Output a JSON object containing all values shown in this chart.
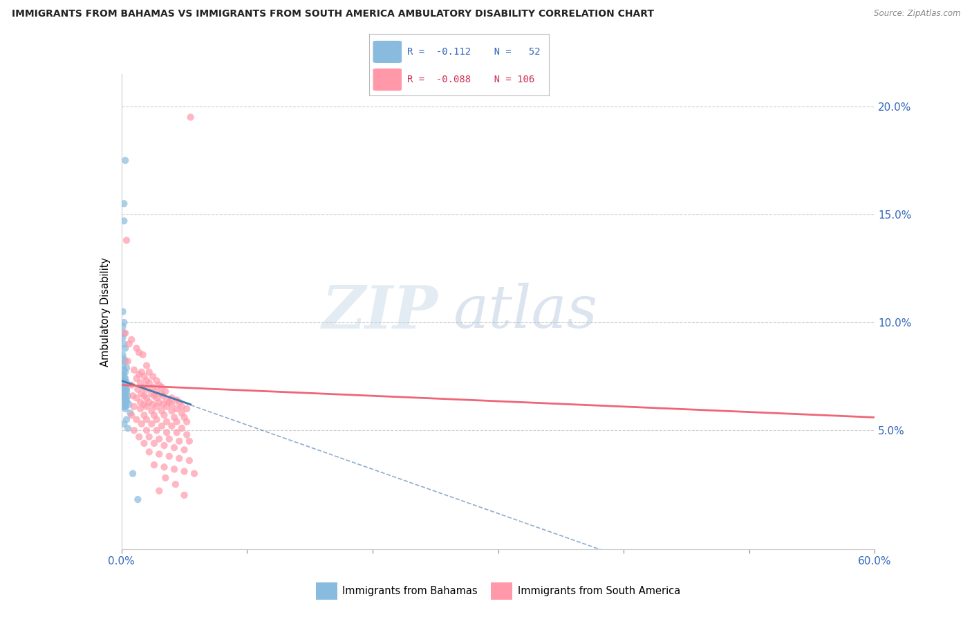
{
  "title": "IMMIGRANTS FROM BAHAMAS VS IMMIGRANTS FROM SOUTH AMERICA AMBULATORY DISABILITY CORRELATION CHART",
  "source": "Source: ZipAtlas.com",
  "ylabel": "Ambulatory Disability",
  "xlim": [
    0.0,
    0.6
  ],
  "ylim": [
    -0.005,
    0.215
  ],
  "color_blue": "#88BBDD",
  "color_pink": "#FF99AA",
  "color_blue_line": "#4477AA",
  "color_pink_line": "#EE6677",
  "watermark_zip": "ZIP",
  "watermark_atlas": "atlas",
  "background_color": "#FFFFFF",
  "blue_points": [
    [
      0.003,
      0.175
    ],
    [
      0.002,
      0.155
    ],
    [
      0.002,
      0.147
    ],
    [
      0.001,
      0.105
    ],
    [
      0.002,
      0.1
    ],
    [
      0.001,
      0.098
    ],
    [
      0.002,
      0.095
    ],
    [
      0.001,
      0.093
    ],
    [
      0.002,
      0.09
    ],
    [
      0.003,
      0.088
    ],
    [
      0.001,
      0.085
    ],
    [
      0.002,
      0.083
    ],
    [
      0.003,
      0.082
    ],
    [
      0.001,
      0.08
    ],
    [
      0.004,
      0.079
    ],
    [
      0.002,
      0.078
    ],
    [
      0.003,
      0.077
    ],
    [
      0.001,
      0.076
    ],
    [
      0.002,
      0.075
    ],
    [
      0.003,
      0.074
    ],
    [
      0.002,
      0.073
    ],
    [
      0.003,
      0.073
    ],
    [
      0.001,
      0.072
    ],
    [
      0.004,
      0.072
    ],
    [
      0.001,
      0.071
    ],
    [
      0.002,
      0.071
    ],
    [
      0.002,
      0.07
    ],
    [
      0.003,
      0.07
    ],
    [
      0.003,
      0.069
    ],
    [
      0.004,
      0.069
    ],
    [
      0.001,
      0.068
    ],
    [
      0.004,
      0.068
    ],
    [
      0.002,
      0.067
    ],
    [
      0.002,
      0.067
    ],
    [
      0.003,
      0.066
    ],
    [
      0.005,
      0.066
    ],
    [
      0.001,
      0.065
    ],
    [
      0.003,
      0.065
    ],
    [
      0.004,
      0.064
    ],
    [
      0.001,
      0.064
    ],
    [
      0.004,
      0.063
    ],
    [
      0.002,
      0.063
    ],
    [
      0.006,
      0.062
    ],
    [
      0.002,
      0.061
    ],
    [
      0.003,
      0.061
    ],
    [
      0.003,
      0.06
    ],
    [
      0.007,
      0.058
    ],
    [
      0.004,
      0.055
    ],
    [
      0.002,
      0.053
    ],
    [
      0.005,
      0.051
    ],
    [
      0.009,
      0.03
    ],
    [
      0.013,
      0.018
    ]
  ],
  "pink_points": [
    [
      0.004,
      0.138
    ],
    [
      0.003,
      0.095
    ],
    [
      0.008,
      0.092
    ],
    [
      0.006,
      0.09
    ],
    [
      0.012,
      0.088
    ],
    [
      0.014,
      0.086
    ],
    [
      0.017,
      0.085
    ],
    [
      0.005,
      0.082
    ],
    [
      0.02,
      0.08
    ],
    [
      0.01,
      0.078
    ],
    [
      0.016,
      0.077
    ],
    [
      0.022,
      0.077
    ],
    [
      0.014,
      0.076
    ],
    [
      0.018,
      0.075
    ],
    [
      0.025,
      0.075
    ],
    [
      0.012,
      0.074
    ],
    [
      0.02,
      0.073
    ],
    [
      0.028,
      0.073
    ],
    [
      0.015,
      0.072
    ],
    [
      0.022,
      0.072
    ],
    [
      0.03,
      0.071
    ],
    [
      0.008,
      0.071
    ],
    [
      0.018,
      0.07
    ],
    [
      0.025,
      0.07
    ],
    [
      0.032,
      0.07
    ],
    [
      0.013,
      0.069
    ],
    [
      0.02,
      0.069
    ],
    [
      0.028,
      0.068
    ],
    [
      0.035,
      0.068
    ],
    [
      0.016,
      0.067
    ],
    [
      0.024,
      0.067
    ],
    [
      0.032,
      0.067
    ],
    [
      0.009,
      0.066
    ],
    [
      0.018,
      0.066
    ],
    [
      0.026,
      0.066
    ],
    [
      0.033,
      0.066
    ],
    [
      0.04,
      0.065
    ],
    [
      0.012,
      0.065
    ],
    [
      0.02,
      0.065
    ],
    [
      0.028,
      0.065
    ],
    [
      0.036,
      0.064
    ],
    [
      0.044,
      0.064
    ],
    [
      0.015,
      0.063
    ],
    [
      0.022,
      0.063
    ],
    [
      0.03,
      0.063
    ],
    [
      0.038,
      0.063
    ],
    [
      0.046,
      0.063
    ],
    [
      0.018,
      0.062
    ],
    [
      0.025,
      0.062
    ],
    [
      0.033,
      0.062
    ],
    [
      0.04,
      0.062
    ],
    [
      0.048,
      0.061
    ],
    [
      0.01,
      0.061
    ],
    [
      0.02,
      0.061
    ],
    [
      0.028,
      0.061
    ],
    [
      0.036,
      0.061
    ],
    [
      0.044,
      0.06
    ],
    [
      0.052,
      0.06
    ],
    [
      0.015,
      0.06
    ],
    [
      0.024,
      0.059
    ],
    [
      0.032,
      0.059
    ],
    [
      0.04,
      0.059
    ],
    [
      0.048,
      0.058
    ],
    [
      0.008,
      0.057
    ],
    [
      0.018,
      0.057
    ],
    [
      0.026,
      0.057
    ],
    [
      0.034,
      0.057
    ],
    [
      0.042,
      0.056
    ],
    [
      0.05,
      0.056
    ],
    [
      0.012,
      0.055
    ],
    [
      0.02,
      0.055
    ],
    [
      0.028,
      0.055
    ],
    [
      0.036,
      0.054
    ],
    [
      0.044,
      0.054
    ],
    [
      0.052,
      0.054
    ],
    [
      0.016,
      0.053
    ],
    [
      0.024,
      0.053
    ],
    [
      0.032,
      0.052
    ],
    [
      0.04,
      0.052
    ],
    [
      0.048,
      0.051
    ],
    [
      0.01,
      0.05
    ],
    [
      0.02,
      0.05
    ],
    [
      0.028,
      0.05
    ],
    [
      0.036,
      0.049
    ],
    [
      0.044,
      0.049
    ],
    [
      0.052,
      0.048
    ],
    [
      0.014,
      0.047
    ],
    [
      0.022,
      0.047
    ],
    [
      0.03,
      0.046
    ],
    [
      0.038,
      0.046
    ],
    [
      0.046,
      0.045
    ],
    [
      0.054,
      0.045
    ],
    [
      0.018,
      0.044
    ],
    [
      0.026,
      0.044
    ],
    [
      0.034,
      0.043
    ],
    [
      0.042,
      0.042
    ],
    [
      0.05,
      0.041
    ],
    [
      0.022,
      0.04
    ],
    [
      0.03,
      0.039
    ],
    [
      0.038,
      0.038
    ],
    [
      0.046,
      0.037
    ],
    [
      0.054,
      0.036
    ],
    [
      0.026,
      0.034
    ],
    [
      0.034,
      0.033
    ],
    [
      0.042,
      0.032
    ],
    [
      0.05,
      0.031
    ],
    [
      0.058,
      0.03
    ],
    [
      0.035,
      0.028
    ],
    [
      0.043,
      0.025
    ],
    [
      0.03,
      0.022
    ],
    [
      0.05,
      0.02
    ],
    [
      0.055,
      0.195
    ]
  ]
}
